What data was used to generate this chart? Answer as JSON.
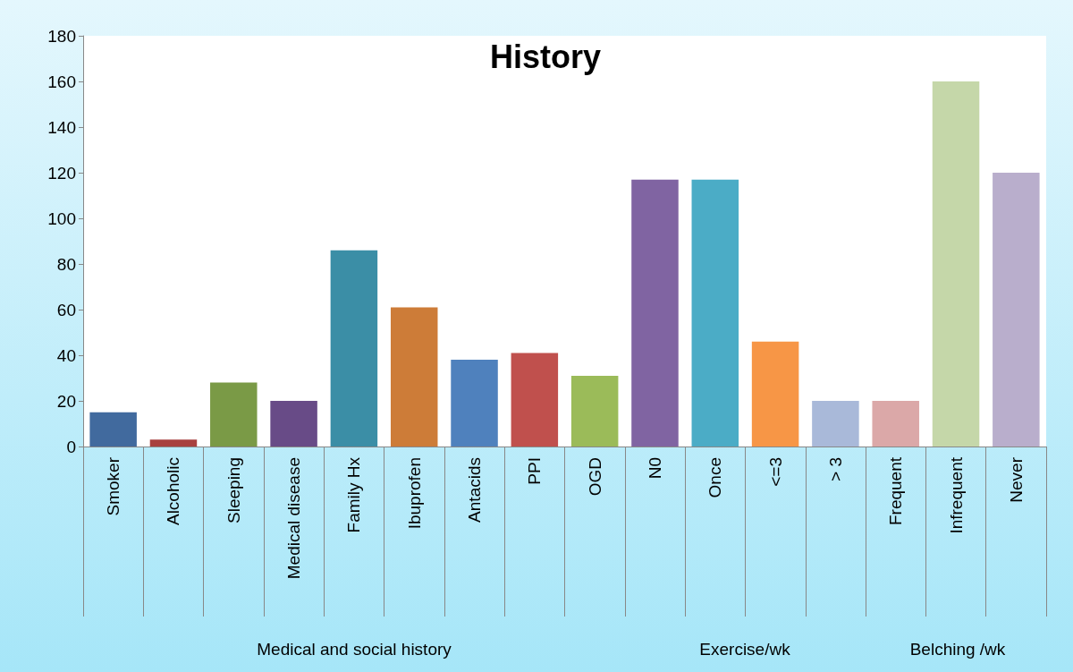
{
  "chart_data": {
    "type": "bar",
    "title": "History",
    "categories": [
      "Smoker",
      "Alcoholic",
      "Sleeping",
      "Medical disease",
      "Family Hx",
      "Ibuprofen",
      "Antacids",
      "PPI",
      "OGD",
      "N0",
      "Once",
      "<=3",
      "> 3",
      "Frequent",
      "Infrequent",
      "Never"
    ],
    "values": [
      15,
      3,
      28,
      20,
      86,
      61,
      38,
      41,
      31,
      117,
      117,
      46,
      20,
      20,
      160,
      120
    ],
    "colors": [
      "#416a9e",
      "#a8413f",
      "#7a9a46",
      "#684b87",
      "#3b8ea6",
      "#cd7c38",
      "#4f81bd",
      "#c0504d",
      "#9bbb59",
      "#8064a2",
      "#4bacc6",
      "#f79646",
      "#a9b9d9",
      "#dba8a8",
      "#c5d7a9",
      "#b9aecc"
    ],
    "ylim": [
      0,
      180
    ],
    "yticks": [
      0,
      20,
      40,
      60,
      80,
      100,
      120,
      140,
      160,
      180
    ],
    "grid": false,
    "annotations": [
      "Medical and social history",
      "Exercise/wk",
      "Belching /wk"
    ]
  }
}
